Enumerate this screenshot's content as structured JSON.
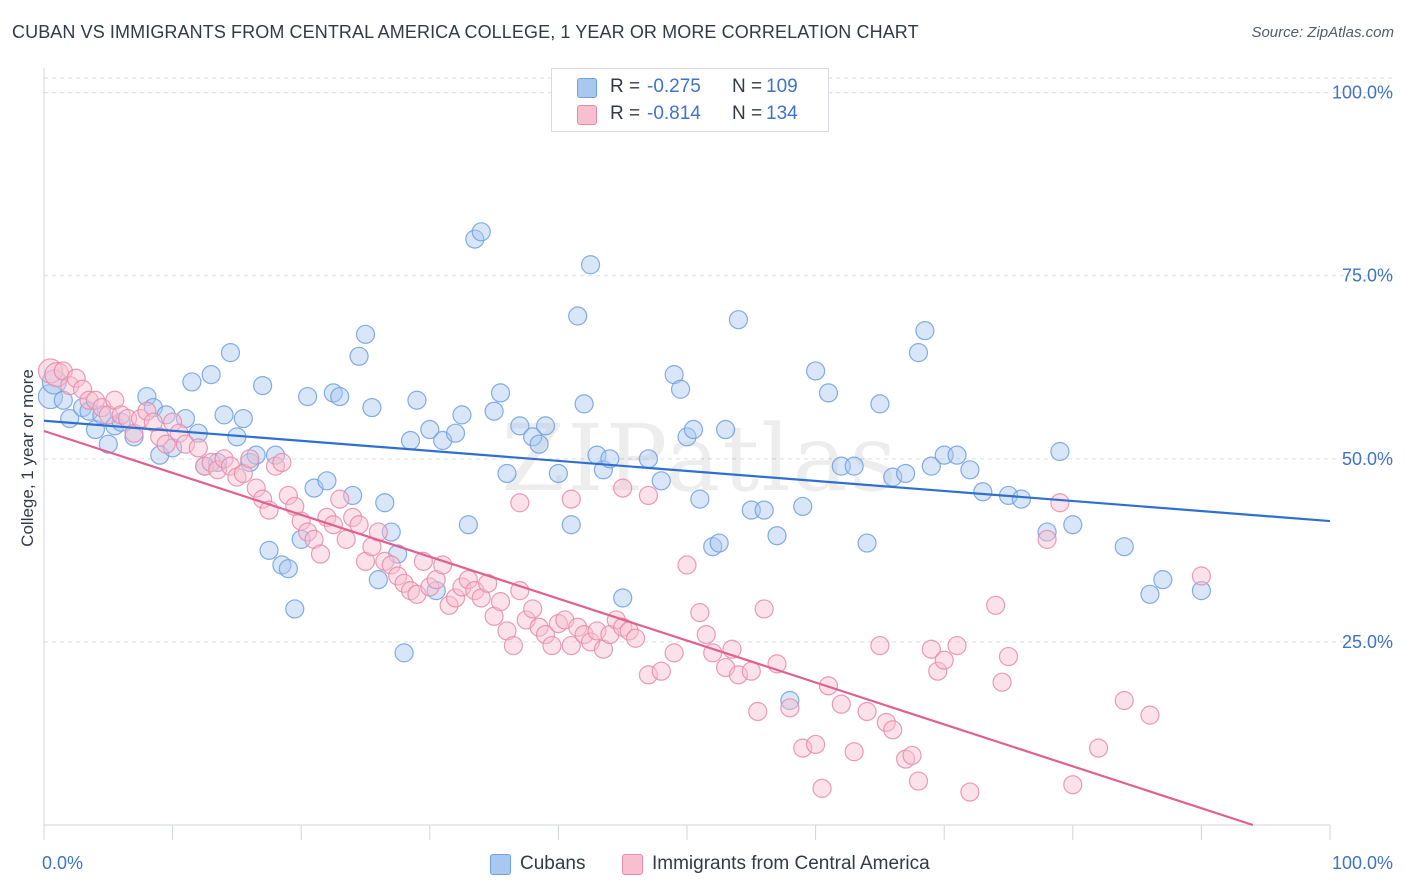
{
  "title": "CUBAN VS IMMIGRANTS FROM CENTRAL AMERICA COLLEGE, 1 YEAR OR MORE CORRELATION CHART",
  "source": "Source: ZipAtlas.com",
  "watermark": "ZIPatlas",
  "legend": {
    "rows": [
      {
        "r_label": "R =",
        "r_value": "-0.275",
        "n_label": "N =",
        "n_value": "109",
        "color": "#a9c8f0",
        "border": "#6f9fe0"
      },
      {
        "r_label": "R =",
        "r_value": "-0.814",
        "n_label": "N =",
        "n_value": "134",
        "color": "#f7bfd0",
        "border": "#e88aa8"
      }
    ]
  },
  "bottom_legend": [
    {
      "label": "Cubans",
      "color": "#a9c8f0",
      "border": "#6f9fe0"
    },
    {
      "label": "Immigrants from Central America",
      "color": "#f7bfd0",
      "border": "#e88aa8"
    }
  ],
  "chart_data": {
    "type": "scatter",
    "title": "CUBAN VS IMMIGRANTS FROM CENTRAL AMERICA COLLEGE, 1 YEAR OR MORE CORRELATION CHART",
    "xlabel": "",
    "ylabel": "College, 1 year or more",
    "xlim": [
      0,
      100
    ],
    "ylim": [
      0,
      102
    ],
    "x_tick_labels": [
      "0.0%",
      "100.0%"
    ],
    "y_tick_labels": [
      "25.0%",
      "50.0%",
      "75.0%",
      "100.0%"
    ],
    "y_ticks": [
      25,
      50,
      75,
      100
    ],
    "grid": "horizontal dashed",
    "legend_position": "top-center",
    "series": [
      {
        "name": "Cubans",
        "color": "#6f9fe0",
        "fill": "#a9c8f0",
        "line_color": "#2f6fd0",
        "trend": {
          "x": [
            0,
            100
          ],
          "y": [
            55.2,
            41.5
          ]
        },
        "points": [
          [
            0.5,
            58.5
          ],
          [
            0.8,
            60.5
          ],
          [
            1.5,
            58
          ],
          [
            2,
            55.5
          ],
          [
            3,
            57
          ],
          [
            3.5,
            56.5
          ],
          [
            4,
            54
          ],
          [
            4.5,
            56
          ],
          [
            5,
            52
          ],
          [
            5.5,
            54.5
          ],
          [
            6,
            55
          ],
          [
            7,
            53
          ],
          [
            8,
            58.5
          ],
          [
            8.5,
            57
          ],
          [
            9,
            50.5
          ],
          [
            9.5,
            56
          ],
          [
            10,
            51.5
          ],
          [
            11,
            55.5
          ],
          [
            11.5,
            60.5
          ],
          [
            12,
            53.5
          ],
          [
            12.5,
            49
          ],
          [
            13,
            61.5
          ],
          [
            13.5,
            49.5
          ],
          [
            14,
            56
          ],
          [
            14.5,
            64.5
          ],
          [
            15,
            53
          ],
          [
            15.5,
            55.5
          ],
          [
            16,
            49.5
          ],
          [
            16.5,
            50.5
          ],
          [
            17,
            60
          ],
          [
            17.5,
            37.5
          ],
          [
            18,
            50.5
          ],
          [
            18.5,
            35.5
          ],
          [
            19,
            35
          ],
          [
            19.5,
            29.5
          ],
          [
            20,
            39
          ],
          [
            20.5,
            58.5
          ],
          [
            21,
            46
          ],
          [
            22,
            47
          ],
          [
            22.5,
            59
          ],
          [
            23,
            58.5
          ],
          [
            24,
            45
          ],
          [
            24.5,
            64
          ],
          [
            25,
            67
          ],
          [
            25.5,
            57
          ],
          [
            26,
            33.5
          ],
          [
            26.5,
            44
          ],
          [
            27,
            40
          ],
          [
            27.5,
            37
          ],
          [
            28,
            23.5
          ],
          [
            28.5,
            52.5
          ],
          [
            29,
            58
          ],
          [
            30,
            54
          ],
          [
            30.5,
            32
          ],
          [
            31,
            52.5
          ],
          [
            32,
            53.5
          ],
          [
            32.5,
            56
          ],
          [
            33,
            41
          ],
          [
            33.5,
            80
          ],
          [
            34,
            81
          ],
          [
            35,
            56.5
          ],
          [
            35.5,
            59
          ],
          [
            36,
            48
          ],
          [
            37,
            54.5
          ],
          [
            38,
            53
          ],
          [
            38.5,
            52
          ],
          [
            39,
            54.5
          ],
          [
            40,
            48
          ],
          [
            41,
            41
          ],
          [
            41.5,
            69.5
          ],
          [
            42,
            57.5
          ],
          [
            42.5,
            76.5
          ],
          [
            43,
            50.5
          ],
          [
            43.5,
            48.5
          ],
          [
            44,
            50
          ],
          [
            45,
            31
          ],
          [
            47,
            50
          ],
          [
            48,
            47
          ],
          [
            49,
            61.5
          ],
          [
            49.5,
            59.5
          ],
          [
            50,
            53
          ],
          [
            50.5,
            54
          ],
          [
            51,
            44.5
          ],
          [
            52,
            38
          ],
          [
            52.5,
            38.5
          ],
          [
            53,
            54
          ],
          [
            54,
            69
          ],
          [
            55,
            43
          ],
          [
            56,
            43
          ],
          [
            57,
            39.5
          ],
          [
            58,
            17
          ],
          [
            59,
            43.5
          ],
          [
            60,
            62
          ],
          [
            61,
            59
          ],
          [
            62,
            49
          ],
          [
            63,
            49
          ],
          [
            64,
            38.5
          ],
          [
            65,
            57.5
          ],
          [
            66,
            47.5
          ],
          [
            67,
            48
          ],
          [
            68,
            64.5
          ],
          [
            68.5,
            67.5
          ],
          [
            69,
            49
          ],
          [
            70,
            50.5
          ],
          [
            71,
            50.5
          ],
          [
            72,
            48.5
          ],
          [
            73,
            45.5
          ],
          [
            75,
            45
          ],
          [
            76,
            44.5
          ],
          [
            78,
            40
          ],
          [
            79,
            51
          ],
          [
            80,
            41
          ],
          [
            84,
            38
          ],
          [
            86,
            31.5
          ],
          [
            87,
            33.5
          ],
          [
            90,
            32
          ]
        ]
      },
      {
        "name": "Immigrants from Central America",
        "color": "#e88aa8",
        "fill": "#f7bfd0",
        "line_color": "#e06090",
        "trend": {
          "x": [
            0,
            94
          ],
          "y": [
            53.8,
            0
          ]
        },
        "points": [
          [
            0.5,
            62
          ],
          [
            1,
            61.5
          ],
          [
            1.5,
            62
          ],
          [
            2,
            60
          ],
          [
            2.5,
            61
          ],
          [
            3,
            59.5
          ],
          [
            3.5,
            58
          ],
          [
            4,
            58
          ],
          [
            4.5,
            57
          ],
          [
            5,
            56
          ],
          [
            5.5,
            58
          ],
          [
            6,
            56
          ],
          [
            6.5,
            55.5
          ],
          [
            7,
            53.5
          ],
          [
            7.5,
            55.5
          ],
          [
            8,
            56.5
          ],
          [
            8.5,
            55
          ],
          [
            9,
            53
          ],
          [
            9.5,
            52
          ],
          [
            10,
            55
          ],
          [
            10.5,
            53.5
          ],
          [
            11,
            52
          ],
          [
            12,
            51.5
          ],
          [
            12.5,
            49
          ],
          [
            13,
            49.5
          ],
          [
            13.5,
            48.5
          ],
          [
            14,
            50
          ],
          [
            14.5,
            49
          ],
          [
            15,
            47.5
          ],
          [
            15.5,
            48
          ],
          [
            16,
            50
          ],
          [
            16.5,
            46
          ],
          [
            17,
            44.5
          ],
          [
            17.5,
            43
          ],
          [
            18,
            49
          ],
          [
            18.5,
            49.5
          ],
          [
            19,
            45
          ],
          [
            19.5,
            43.5
          ],
          [
            20,
            41.5
          ],
          [
            20.5,
            40
          ],
          [
            21,
            39
          ],
          [
            21.5,
            37
          ],
          [
            22,
            42
          ],
          [
            22.5,
            41
          ],
          [
            23,
            44.5
          ],
          [
            23.5,
            39
          ],
          [
            24,
            42
          ],
          [
            24.5,
            41
          ],
          [
            25,
            36
          ],
          [
            25.5,
            38
          ],
          [
            26,
            40
          ],
          [
            26.5,
            36
          ],
          [
            27,
            35.5
          ],
          [
            27.5,
            34
          ],
          [
            28,
            33
          ],
          [
            28.5,
            32
          ],
          [
            29,
            31.5
          ],
          [
            29.5,
            36
          ],
          [
            30,
            32.5
          ],
          [
            30.5,
            33.5
          ],
          [
            31,
            35.5
          ],
          [
            31.5,
            30
          ],
          [
            32,
            31
          ],
          [
            32.5,
            32.5
          ],
          [
            33,
            33.5
          ],
          [
            33.5,
            32
          ],
          [
            34,
            31
          ],
          [
            34.5,
            33
          ],
          [
            35,
            28.5
          ],
          [
            35.5,
            30.5
          ],
          [
            36,
            26.5
          ],
          [
            36.5,
            24.5
          ],
          [
            37,
            32
          ],
          [
            37.5,
            28
          ],
          [
            38,
            29.5
          ],
          [
            38.5,
            27
          ],
          [
            39,
            26
          ],
          [
            39.5,
            24.5
          ],
          [
            40,
            27.5
          ],
          [
            40.5,
            28
          ],
          [
            41,
            24.5
          ],
          [
            41.5,
            27
          ],
          [
            42,
            26
          ],
          [
            42.5,
            25
          ],
          [
            43,
            26.5
          ],
          [
            43.5,
            24
          ],
          [
            44,
            26
          ],
          [
            44.5,
            28
          ],
          [
            45,
            27
          ],
          [
            45.5,
            26.5
          ],
          [
            46,
            25.5
          ],
          [
            47,
            20.5
          ],
          [
            48,
            21
          ],
          [
            49,
            23.5
          ],
          [
            50,
            35.5
          ],
          [
            51,
            29
          ],
          [
            51.5,
            26
          ],
          [
            52,
            23.5
          ],
          [
            53,
            21.5
          ],
          [
            53.5,
            24
          ],
          [
            54,
            20.5
          ],
          [
            55,
            21
          ],
          [
            55.5,
            15.5
          ],
          [
            56,
            29.5
          ],
          [
            57,
            22
          ],
          [
            58,
            16
          ],
          [
            59,
            10.5
          ],
          [
            60,
            11
          ],
          [
            60.5,
            5
          ],
          [
            61,
            19
          ],
          [
            62,
            16.5
          ],
          [
            63,
            10
          ],
          [
            64,
            15.5
          ],
          [
            65,
            24.5
          ],
          [
            65.5,
            14
          ],
          [
            66,
            13
          ],
          [
            67,
            9
          ],
          [
            67.5,
            9.5
          ],
          [
            68,
            6
          ],
          [
            69,
            24
          ],
          [
            69.5,
            21
          ],
          [
            70,
            22.5
          ],
          [
            71,
            24.5
          ],
          [
            72,
            4.5
          ],
          [
            74,
            30
          ],
          [
            74.5,
            19.5
          ],
          [
            75,
            23
          ],
          [
            78,
            39
          ],
          [
            79,
            44
          ],
          [
            80,
            5.5
          ],
          [
            82,
            10.5
          ],
          [
            84,
            17
          ],
          [
            86,
            15
          ],
          [
            90,
            34
          ],
          [
            37,
            44
          ],
          [
            41,
            44.5
          ],
          [
            45,
            46
          ],
          [
            47,
            45
          ]
        ]
      }
    ]
  }
}
